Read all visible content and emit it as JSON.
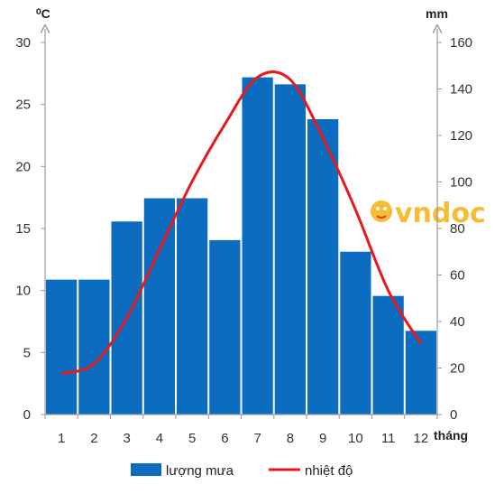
{
  "chart_data": {
    "type": "bar+line",
    "categories": [
      "1",
      "2",
      "3",
      "4",
      "5",
      "6",
      "7",
      "8",
      "9",
      "10",
      "11",
      "12"
    ],
    "series": [
      {
        "name": "lượng mưa",
        "type": "bar",
        "axis": "right",
        "color": "#0b6cc0",
        "values": [
          58,
          58,
          83,
          93,
          93,
          75,
          145,
          142,
          127,
          70,
          51,
          36
        ]
      },
      {
        "name": "nhiệt độ",
        "type": "line",
        "axis": "left",
        "color": "#e8191c",
        "values": [
          3.3,
          4.1,
          7.8,
          13.3,
          18.8,
          23.4,
          27.2,
          27.0,
          22.3,
          16.5,
          10.0,
          5.7
        ]
      }
    ],
    "y_left": {
      "label": "⁰C",
      "lim": [
        0,
        30
      ],
      "ticks": [
        0,
        5,
        10,
        15,
        20,
        25,
        30
      ]
    },
    "y_right": {
      "label": "mm",
      "lim": [
        0,
        160
      ],
      "ticks": [
        0,
        20,
        40,
        60,
        80,
        100,
        120,
        140,
        160
      ]
    },
    "x": {
      "label": "tháng"
    },
    "legend": {
      "position": "bottom"
    },
    "grid": false
  },
  "watermark": {
    "text": "vndoc",
    "icon": "mascot-icon"
  }
}
